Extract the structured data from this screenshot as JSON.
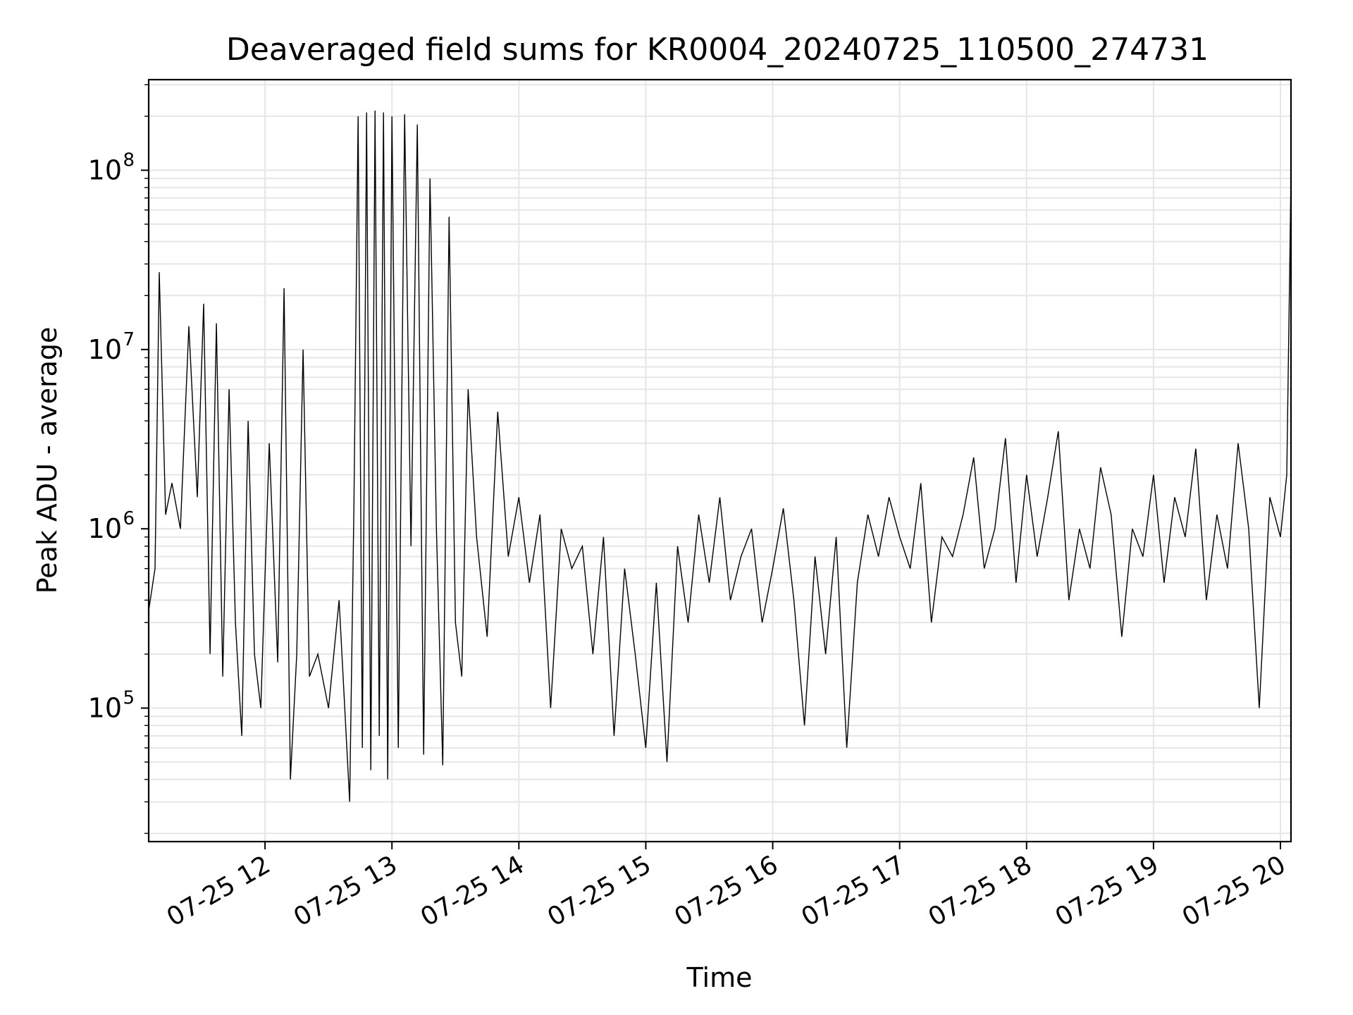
{
  "chart_data": {
    "type": "line",
    "title": "Deaveraged field sums for KR0004_20240725_110500_274731",
    "xlabel": "Time",
    "ylabel": "Peak ADU - average",
    "yscale": "log",
    "ylim": [
      18000,
      320000000
    ],
    "xlim": [
      "2024-07-25T11:05:00",
      "2024-07-25T20:05:00"
    ],
    "x_tick_labels": [
      "07-25 12",
      "07-25 13",
      "07-25 14",
      "07-25 15",
      "07-25 16",
      "07-25 17",
      "07-25 18",
      "07-25 19",
      "07-25 20"
    ],
    "x_ticks": [
      "2024-07-25T12:00",
      "2024-07-25T13:00",
      "2024-07-25T14:00",
      "2024-07-25T15:00",
      "2024-07-25T16:00",
      "2024-07-25T17:00",
      "2024-07-25T18:00",
      "2024-07-25T19:00",
      "2024-07-25T20:00"
    ],
    "y_ticks": [
      {
        "value": 100000,
        "base": "10",
        "exp": "5"
      },
      {
        "value": 1000000,
        "base": "10",
        "exp": "6"
      },
      {
        "value": 10000000,
        "base": "10",
        "exp": "7"
      },
      {
        "value": 100000000,
        "base": "10",
        "exp": "8"
      }
    ],
    "grid": true,
    "minor_grid": true,
    "line_color": "#000000",
    "series": [
      {
        "x": [
          "11:05",
          "11:08",
          "11:10",
          "11:13",
          "11:16",
          "11:20",
          "11:24",
          "11:28",
          "11:31",
          "11:34",
          "11:37",
          "11:40",
          "11:43",
          "11:46",
          "11:49",
          "11:52",
          "11:55",
          "11:58",
          "12:02",
          "12:06",
          "12:09",
          "12:12",
          "12:15",
          "12:18",
          "12:21",
          "12:25",
          "12:30",
          "12:35",
          "12:40",
          "12:42",
          "12:44",
          "12:46",
          "12:48",
          "12:50",
          "12:52",
          "12:54",
          "12:56",
          "12:58",
          "13:00",
          "13:03",
          "13:06",
          "13:09",
          "13:12",
          "13:15",
          "13:18",
          "13:21",
          "13:24",
          "13:27",
          "13:30",
          "13:33",
          "13:36",
          "13:40",
          "13:45",
          "13:50",
          "13:55",
          "14:00",
          "14:05",
          "14:10",
          "14:15",
          "14:20",
          "14:25",
          "14:30",
          "14:35",
          "14:40",
          "14:45",
          "14:50",
          "14:55",
          "15:00",
          "15:05",
          "15:10",
          "15:15",
          "15:20",
          "15:25",
          "15:30",
          "15:35",
          "15:40",
          "15:45",
          "15:50",
          "15:55",
          "16:00",
          "16:05",
          "16:10",
          "16:15",
          "16:20",
          "16:25",
          "16:30",
          "16:35",
          "16:40",
          "16:45",
          "16:50",
          "16:55",
          "17:00",
          "17:05",
          "17:10",
          "17:15",
          "17:20",
          "17:25",
          "17:30",
          "17:35",
          "17:40",
          "17:45",
          "17:50",
          "17:55",
          "18:00",
          "18:05",
          "18:10",
          "18:15",
          "18:20",
          "18:25",
          "18:30",
          "18:35",
          "18:40",
          "18:45",
          "18:50",
          "18:55",
          "19:00",
          "19:05",
          "19:10",
          "19:15",
          "19:20",
          "19:25",
          "19:30",
          "19:35",
          "19:40",
          "19:45",
          "19:50",
          "19:55",
          "20:00",
          "20:03",
          "20:05"
        ],
        "values": [
          350000,
          600000,
          27000000,
          1200000,
          1800000,
          1000000,
          13500000,
          1500000,
          18000000,
          200000,
          14000000,
          150000,
          6000000,
          300000,
          70000,
          4000000,
          200000,
          100000,
          3000000,
          180000,
          22000000,
          40000,
          200000,
          10000000,
          150000,
          200000,
          100000,
          400000,
          30000,
          1300000,
          200000000,
          60000,
          210000000,
          45000,
          215000000,
          70000,
          210000000,
          40000,
          200000000,
          60000,
          205000000,
          800000,
          180000000,
          55000,
          90000000,
          1000000,
          48000,
          55000000,
          300000,
          150000,
          6000000,
          900000,
          250000,
          4500000,
          700000,
          1500000,
          500000,
          1200000,
          100000,
          1000000,
          600000,
          800000,
          200000,
          900000,
          70000,
          600000,
          200000,
          60000,
          500000,
          50000,
          800000,
          300000,
          1200000,
          500000,
          1500000,
          400000,
          700000,
          1000000,
          300000,
          600000,
          1300000,
          400000,
          80000,
          700000,
          200000,
          900000,
          60000,
          500000,
          1200000,
          700000,
          1500000,
          900000,
          600000,
          1800000,
          300000,
          900000,
          700000,
          1200000,
          2500000,
          600000,
          1000000,
          3200000,
          500000,
          2000000,
          700000,
          1500000,
          3500000,
          400000,
          1000000,
          600000,
          2200000,
          1200000,
          250000,
          1000000,
          700000,
          2000000,
          500000,
          1500000,
          900000,
          2800000,
          400000,
          1200000,
          600000,
          3000000,
          1000000,
          100000,
          1500000,
          900000,
          2000000,
          90000000
        ]
      }
    ]
  }
}
